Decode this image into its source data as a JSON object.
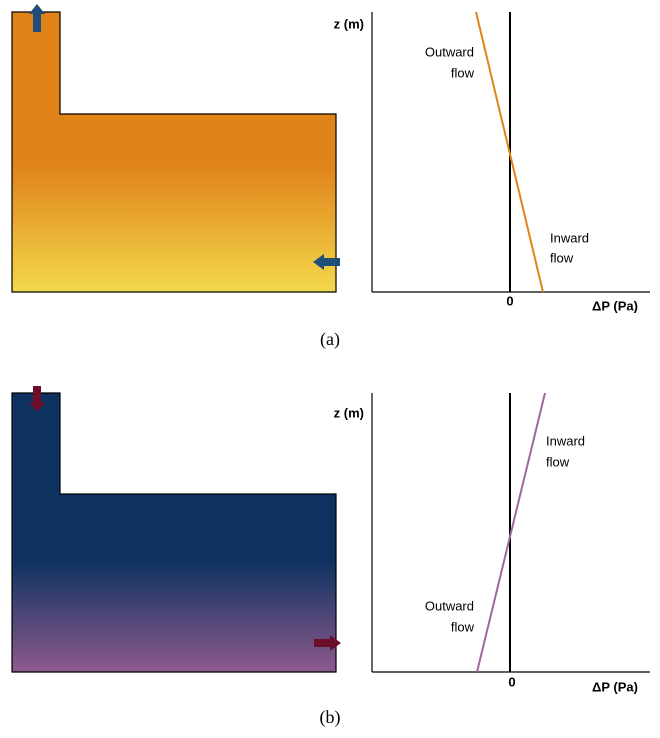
{
  "panels": [
    {
      "caption": "(a)",
      "y_axis_label": "z (m)",
      "x_axis_label": "ΔP (Pa)",
      "zero_label": "0",
      "annotations": [
        {
          "lines": [
            "Outward",
            "flow"
          ]
        },
        {
          "lines": [
            "Inward",
            "flow"
          ]
        }
      ]
    },
    {
      "caption": "(b)",
      "y_axis_label": "z (m)",
      "x_axis_label": "ΔP (Pa)",
      "zero_label": "0",
      "annotations": [
        {
          "lines": [
            "Inward",
            "flow"
          ]
        },
        {
          "lines": [
            "Outward",
            "flow"
          ]
        }
      ]
    }
  ]
}
